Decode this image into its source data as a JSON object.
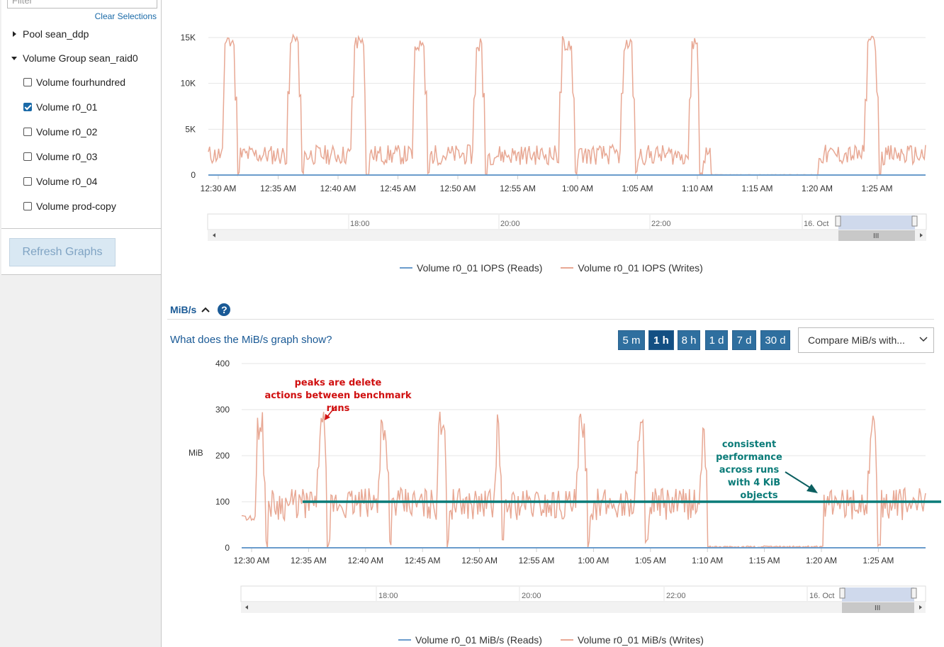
{
  "sidebar": {
    "filter_placeholder": "Filter",
    "clear_selections": "Clear Selections",
    "tree": [
      {
        "label": "Pool sean_ddp",
        "kind": "group",
        "expanded": false
      },
      {
        "label": "Volume Group sean_raid0",
        "kind": "group",
        "expanded": true
      },
      {
        "label": "Volume fourhundred",
        "kind": "volume",
        "checked": false
      },
      {
        "label": "Volume r0_01",
        "kind": "volume",
        "checked": true
      },
      {
        "label": "Volume r0_02",
        "kind": "volume",
        "checked": false
      },
      {
        "label": "Volume r0_03",
        "kind": "volume",
        "checked": false
      },
      {
        "label": "Volume r0_04",
        "kind": "volume",
        "checked": false
      },
      {
        "label": "Volume prod-copy",
        "kind": "volume",
        "checked": false
      }
    ],
    "refresh_button": "Refresh Graphs"
  },
  "colors": {
    "reads": "#6a9ccc",
    "writes": "#e8a894",
    "annotation_red": "#d01010",
    "annotation_teal": "#0a7b78",
    "button_blue": "#2f6f9f"
  },
  "time_labels": [
    "12:30 AM",
    "12:35 AM",
    "12:40 AM",
    "12:45 AM",
    "12:50 AM",
    "12:55 AM",
    "1:00 AM",
    "1:05 AM",
    "1:10 AM",
    "1:15 AM",
    "1:20 AM",
    "1:25 AM"
  ],
  "navigator_labels": [
    "18:00",
    "20:00",
    "22:00",
    "16. Oct"
  ],
  "iops_chart": {
    "y_ticks": [
      "0",
      "5K",
      "10K",
      "15K"
    ],
    "legend": [
      "Volume r0_01 IOPS (Reads)",
      "Volume r0_01 IOPS (Writes)"
    ]
  },
  "mibs_section": {
    "title": "MiB/s",
    "help_link": "What does the MiB/s graph show?",
    "time_ranges": [
      "5 m",
      "1 h",
      "8 h",
      "1 d",
      "7 d",
      "30 d"
    ],
    "active_range": "1 h",
    "compare_select": "Compare MiB/s with...",
    "y_axis_label": "MiB",
    "y_ticks": [
      "0",
      "100",
      "200",
      "300",
      "400"
    ],
    "legend": [
      "Volume r0_01 MiB/s (Reads)",
      "Volume r0_01 MiB/s (Writes)"
    ],
    "annotation_peaks": [
      "peaks are delete",
      "actions between benchmark runs"
    ],
    "annotation_consistent": [
      "consistent",
      "performance",
      "across runs",
      "with 4 KiB",
      "objects"
    ],
    "consistent_level_mib": 100
  },
  "chart_data": [
    {
      "type": "line",
      "xlabel": "",
      "ylabel": "",
      "ylim": [
        0,
        15000
      ],
      "x": [
        "12:30 AM",
        "12:35 AM",
        "12:40 AM",
        "12:45 AM",
        "12:50 AM",
        "12:55 AM",
        "1:00 AM",
        "1:05 AM",
        "1:10 AM",
        "1:15 AM",
        "1:20 AM",
        "1:25 AM"
      ],
      "series": [
        {
          "name": "Volume r0_01 IOPS (Reads)",
          "values": [
            0,
            0,
            0,
            0,
            0,
            0,
            0,
            0,
            0,
            0,
            0,
            0
          ]
        },
        {
          "name": "Volume r0_01 IOPS (Writes)",
          "values": [
            2800,
            1500,
            1500,
            14800,
            1500,
            2500,
            3000,
            14800,
            100,
            100,
            1500,
            2500
          ]
        }
      ]
    },
    {
      "type": "line",
      "xlabel": "",
      "ylabel": "MiB",
      "ylim": [
        0,
        400
      ],
      "x": [
        "12:30 AM",
        "12:35 AM",
        "12:40 AM",
        "12:45 AM",
        "12:50 AM",
        "12:55 AM",
        "1:00 AM",
        "1:05 AM",
        "1:10 AM",
        "1:15 AM",
        "1:20 AM",
        "1:25 AM"
      ],
      "series": [
        {
          "name": "Volume r0_01 MiB/s (Reads)",
          "values": [
            0,
            0,
            0,
            0,
            0,
            0,
            0,
            0,
            0,
            0,
            0,
            0
          ]
        },
        {
          "name": "Volume r0_01 MiB/s (Writes)",
          "values": [
            65,
            40,
            90,
            260,
            100,
            80,
            110,
            250,
            5,
            2,
            80,
            100
          ]
        }
      ]
    }
  ]
}
